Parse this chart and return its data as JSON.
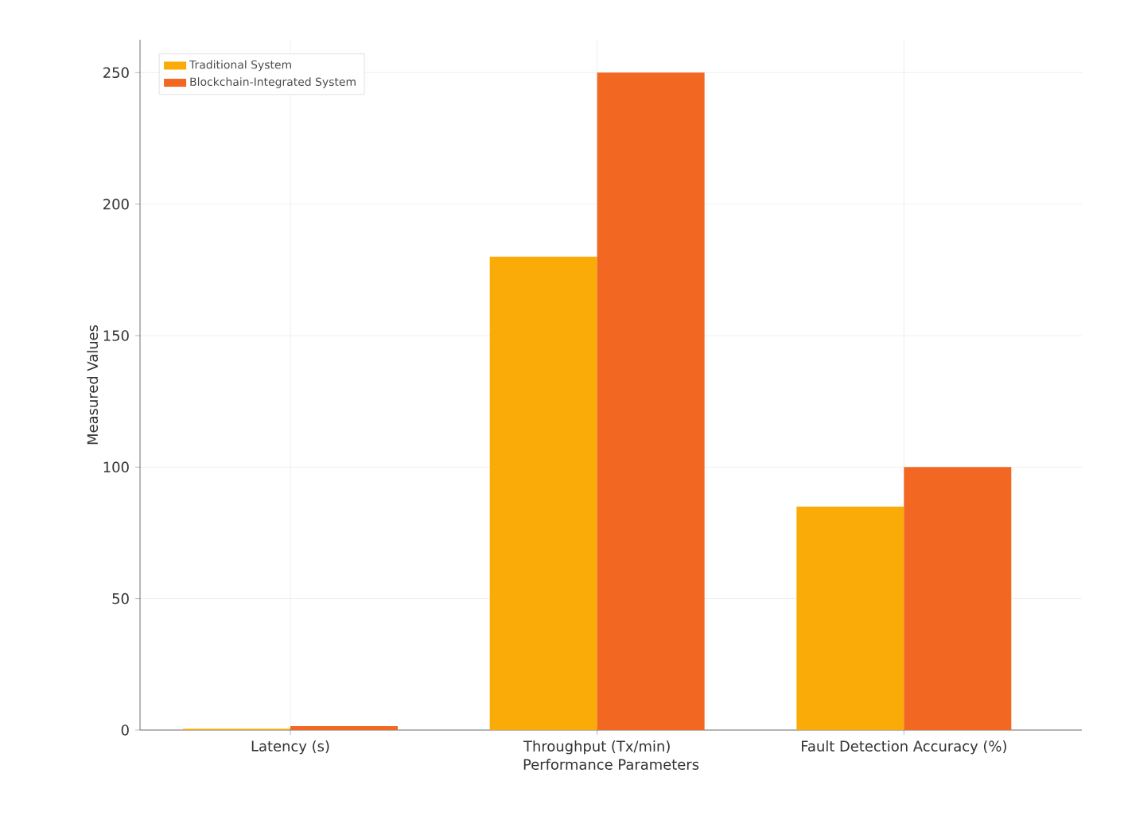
{
  "chart_data": {
    "type": "bar",
    "xlabel": "Performance Parameters",
    "ylabel": "Measured Values",
    "categories": [
      "Latency (s)",
      "Throughput (Tx/min)",
      "Fault Detection Accuracy (%)"
    ],
    "series": [
      {
        "name": "Traditional System",
        "color": "#fbab07",
        "values": [
          0.5,
          180,
          85
        ]
      },
      {
        "name": "Blockchain-Integrated System",
        "color": "#f26722",
        "values": [
          1.5,
          250,
          100
        ]
      }
    ],
    "ylim": [
      0,
      262.5
    ],
    "yticks": [
      0,
      50,
      100,
      150,
      200,
      250
    ],
    "grid": true,
    "legend": "top left"
  }
}
